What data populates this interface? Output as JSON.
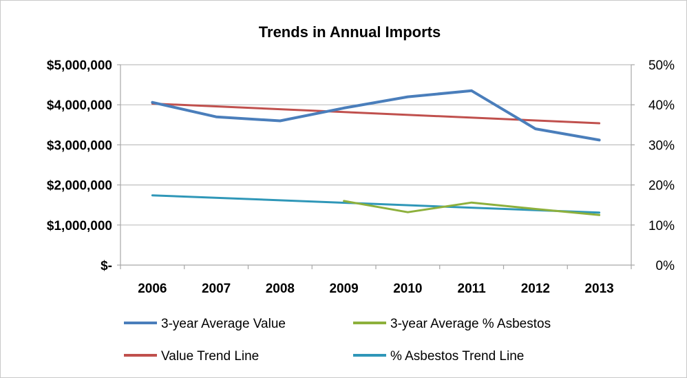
{
  "chart_data": {
    "type": "line",
    "title": "Trends in Annual Imports",
    "categories": [
      "2006",
      "2007",
      "2008",
      "2009",
      "2010",
      "2011",
      "2012",
      "2013"
    ],
    "y_left": {
      "ticks": [
        "$-",
        "$1,000,000",
        "$2,000,000",
        "$3,000,000",
        "$4,000,000",
        "$5,000,000"
      ],
      "tick_values": [
        0,
        1000000,
        2000000,
        3000000,
        4000000,
        5000000
      ],
      "range": [
        0,
        5000000
      ]
    },
    "y_right": {
      "ticks": [
        "0%",
        "10%",
        "20%",
        "30%",
        "40%",
        "50%"
      ],
      "tick_values": [
        0,
        10,
        20,
        30,
        40,
        50
      ],
      "range": [
        0,
        50
      ]
    },
    "grid": true,
    "legend_position": "bottom",
    "series": [
      {
        "name": "3-year Average Value",
        "axis": "left",
        "color": "#4a7ebb",
        "x": [
          "2006",
          "2007",
          "2008",
          "2009",
          "2010",
          "2011",
          "2012",
          "2013"
        ],
        "values": [
          4060000,
          3700000,
          3600000,
          3920000,
          4200000,
          4350000,
          3400000,
          3120000
        ]
      },
      {
        "name": "3-year Average % Asbestos",
        "axis": "right",
        "color": "#8db03c",
        "x": [
          "2009",
          "2010",
          "2011",
          "2012",
          "2013"
        ],
        "values": [
          16.0,
          13.2,
          15.6,
          14.0,
          12.5
        ]
      },
      {
        "name": "Value Trend Line",
        "axis": "left",
        "color": "#c0504d",
        "x": [
          "2006",
          "2013"
        ],
        "values": [
          4030000,
          3540000
        ]
      },
      {
        "name": "% Asbestos Trend Line",
        "axis": "right",
        "color": "#2f97b8",
        "x": [
          "2006",
          "2013"
        ],
        "values": [
          17.4,
          13.1
        ]
      }
    ]
  }
}
